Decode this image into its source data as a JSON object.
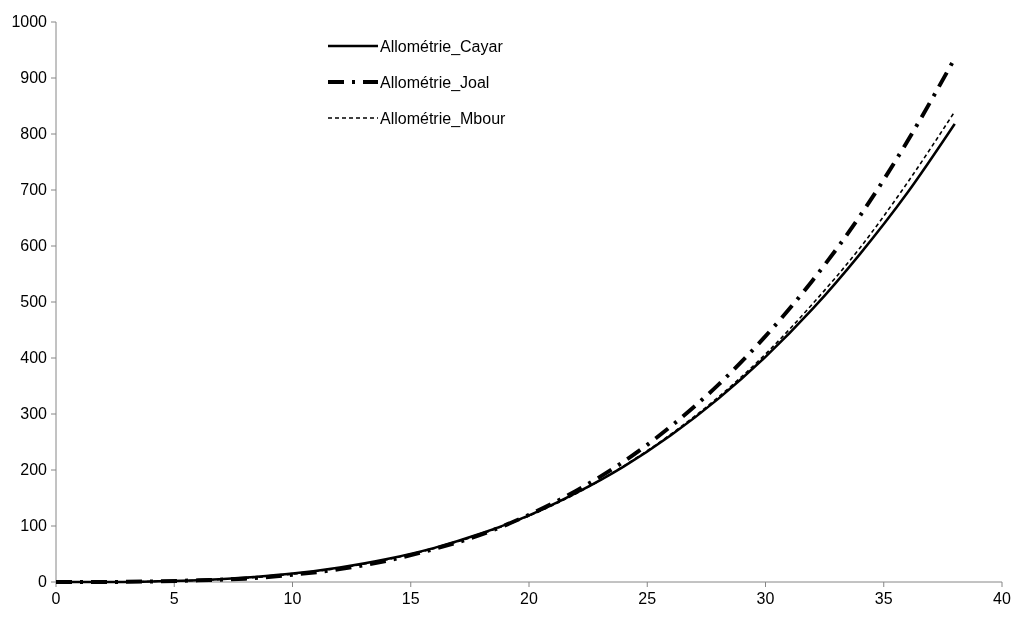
{
  "chart_data": {
    "type": "line",
    "x": [
      0,
      2,
      4,
      6,
      8,
      10,
      12,
      14,
      16,
      18,
      20,
      22,
      24,
      26,
      28,
      30,
      32,
      34,
      36,
      38
    ],
    "xlim": [
      0,
      40
    ],
    "xticks": [
      0,
      5,
      10,
      15,
      20,
      25,
      30,
      35,
      40
    ],
    "ylim": [
      0,
      1000
    ],
    "yticks": [
      0,
      100,
      200,
      300,
      400,
      500,
      600,
      700,
      800,
      900,
      1000
    ],
    "grid": false,
    "legend": "top",
    "series": [
      {
        "name": "Allométrie_Cayar",
        "color": "#000000",
        "line_style": "solid",
        "values": [
          0,
          0,
          1,
          3,
          8,
          15,
          26,
          41,
          61,
          87,
          119,
          159,
          206,
          262,
          327,
          402,
          488,
          586,
          695,
          818
        ]
      },
      {
        "name": "Allométrie_Joal",
        "color": "#000000",
        "line_style": "dashdot",
        "values": [
          0,
          0,
          1,
          3,
          6,
          13,
          23,
          38,
          59,
          85,
          120,
          163,
          215,
          278,
          352,
          439,
          539,
          654,
          787,
          935
        ]
      },
      {
        "name": "Allométrie_Mbour",
        "color": "#000000",
        "line_style": "dashed",
        "values": [
          0,
          0,
          1,
          3,
          7,
          14,
          25,
          40,
          60,
          86,
          118,
          158,
          207,
          264,
          330,
          407,
          497,
          597,
          713,
          840
        ]
      }
    ]
  }
}
